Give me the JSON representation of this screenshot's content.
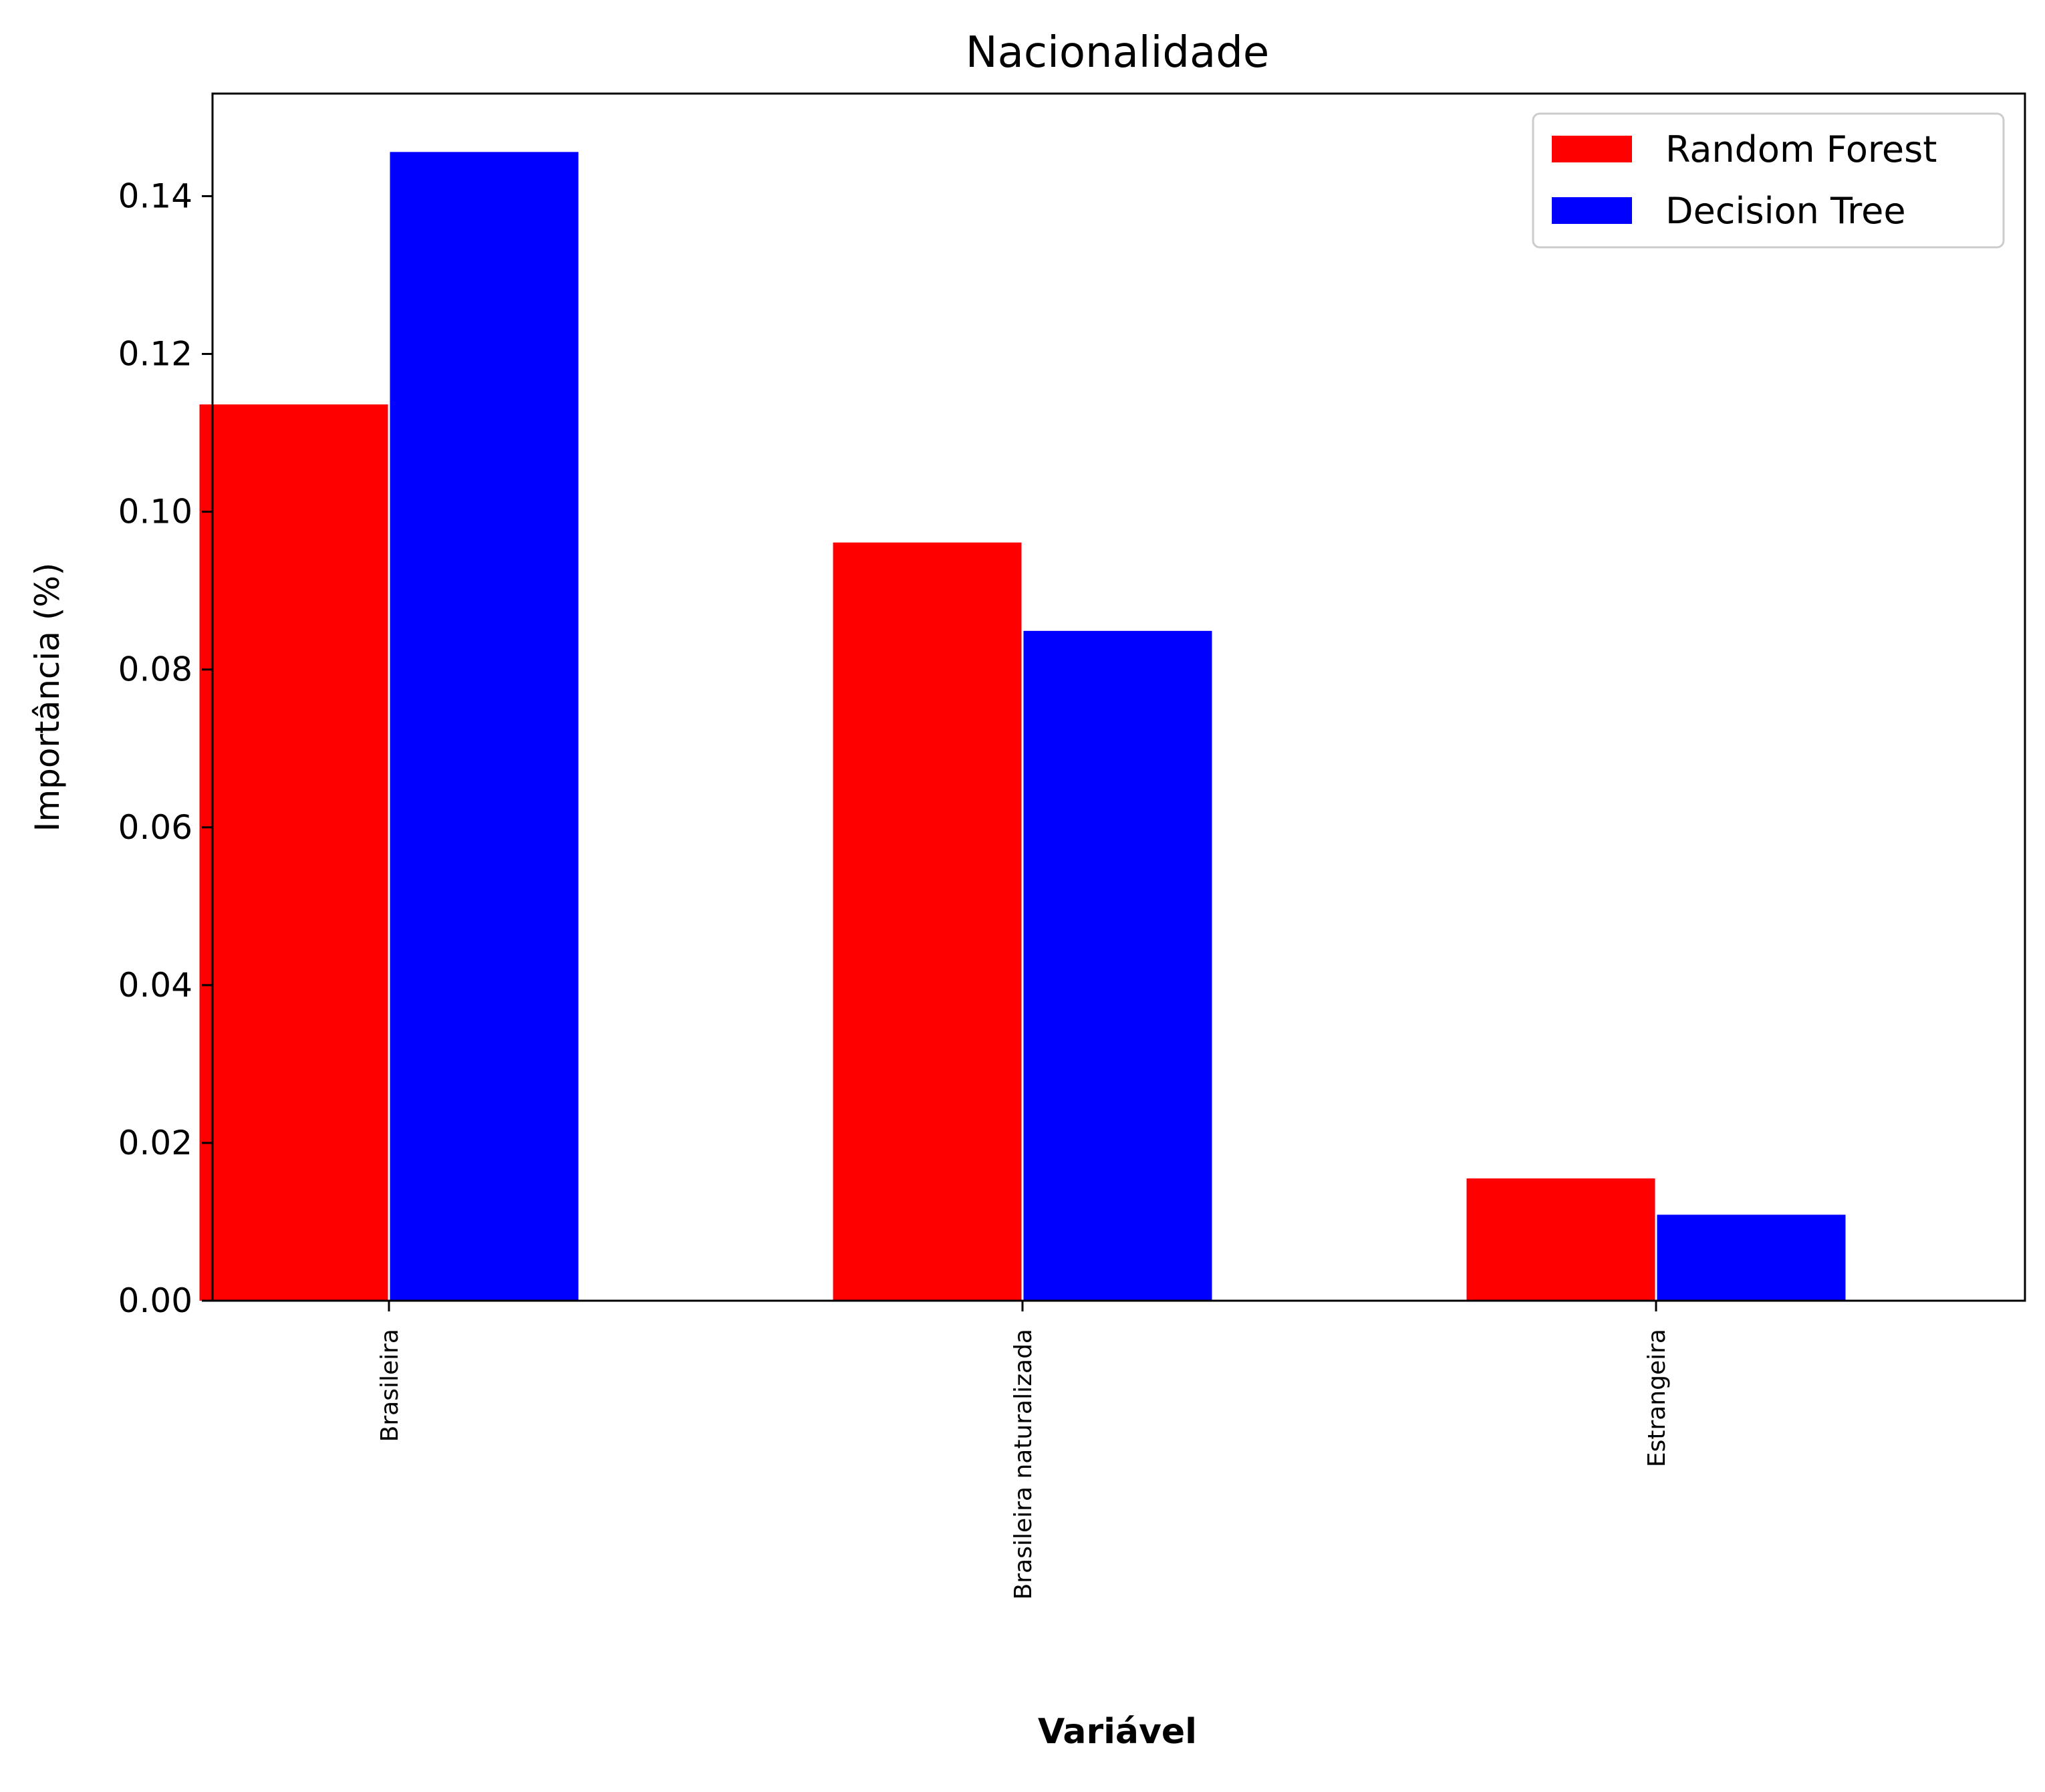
{
  "chart_data": {
    "type": "bar",
    "title": "Nacionalidade",
    "xlabel": "Variável",
    "ylabel": "Importância (%)",
    "categories": [
      "Brasileira",
      "Brasileira naturalizada",
      "Estrangeira"
    ],
    "series": [
      {
        "name": "Random Forest",
        "color": "#ff0000",
        "values": [
          0.1136,
          0.0961,
          0.0155
        ]
      },
      {
        "name": "Decision Tree",
        "color": "#0000ff",
        "values": [
          0.1456,
          0.0849,
          0.0109
        ]
      }
    ],
    "ylim": [
      0,
      0.153
    ],
    "yticks": [
      "0.00",
      "0.02",
      "0.04",
      "0.06",
      "0.08",
      "0.10",
      "0.12",
      "0.14"
    ],
    "ytick_values": [
      0,
      0.02,
      0.04,
      0.06,
      0.08,
      0.1,
      0.12,
      0.14
    ],
    "legend_placement": "top-right",
    "grid": false
  }
}
